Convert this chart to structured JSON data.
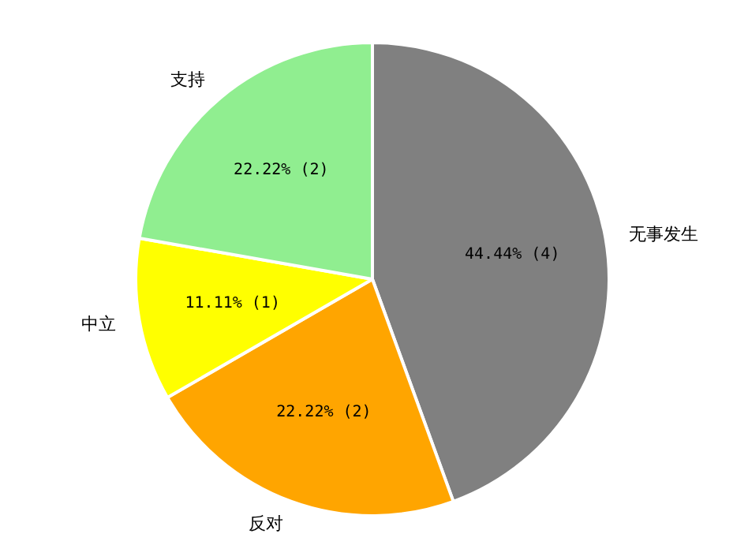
{
  "chart_data": {
    "type": "pie",
    "categories": [
      "无事发生",
      "反对",
      "中立",
      "支持"
    ],
    "values": [
      4,
      2,
      1,
      2
    ],
    "colors": [
      "#808080",
      "#ffa500",
      "#ffff00",
      "#90ee90"
    ],
    "value_labels": [
      "44.44% (4)",
      "22.22% (2)",
      "11.11% (1)",
      "22.22% (2)"
    ]
  }
}
